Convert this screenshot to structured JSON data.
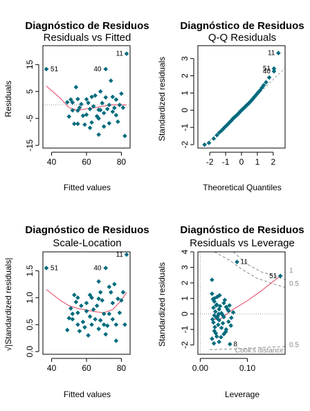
{
  "colors": {
    "point": "#006b7d",
    "smooth": "#e0405a",
    "ref": "#999999",
    "cook": "#888888"
  },
  "chart_data": [
    {
      "type": "scatter",
      "title": "Diagnóstico de Residuos",
      "subtitle": "Residuals vs Fitted",
      "xlabel": "Fitted values",
      "ylabel": "Residuals",
      "xlim": [
        35,
        85
      ],
      "ylim": [
        -16,
        22
      ],
      "xticks": [
        40,
        60,
        80
      ],
      "yticks": [
        -15,
        -5,
        5,
        15
      ],
      "reference_line": 0,
      "point_labels": [
        {
          "text": "51",
          "x": 37.0,
          "y": 13.3
        },
        {
          "text": "40",
          "x": 70.5,
          "y": 13.3
        },
        {
          "text": "11",
          "x": 83.0,
          "y": 19.0
        }
      ],
      "points": [
        [
          37,
          13.3
        ],
        [
          49,
          1
        ],
        [
          50,
          -4.3
        ],
        [
          51,
          2
        ],
        [
          52,
          0.9
        ],
        [
          52,
          -2
        ],
        [
          53,
          -7
        ],
        [
          54,
          6.6
        ],
        [
          55,
          2.2
        ],
        [
          55,
          -2.1
        ],
        [
          56,
          -1
        ],
        [
          57,
          0.3
        ],
        [
          58,
          -4
        ],
        [
          59,
          -7.3
        ],
        [
          60,
          2.1
        ],
        [
          60,
          -3.6
        ],
        [
          61,
          0.8
        ],
        [
          62,
          -1.5
        ],
        [
          63,
          3
        ],
        [
          63,
          -6.5
        ],
        [
          64,
          -0.5
        ],
        [
          65,
          3.5
        ],
        [
          66,
          -4.2
        ],
        [
          67,
          -1.8
        ],
        [
          67,
          -11
        ],
        [
          68,
          5
        ],
        [
          68,
          -1.9
        ],
        [
          69,
          0.7
        ],
        [
          70,
          -3
        ],
        [
          70,
          -8
        ],
        [
          71,
          13.3
        ],
        [
          71,
          2.8
        ],
        [
          72,
          -1.5
        ],
        [
          73,
          0
        ],
        [
          73,
          -6.8
        ],
        [
          74,
          9
        ],
        [
          75,
          -2.5
        ],
        [
          75,
          3
        ],
        [
          76,
          -1.1
        ],
        [
          77,
          2
        ],
        [
          77,
          -3.8
        ],
        [
          78,
          -6.2
        ],
        [
          79,
          0
        ],
        [
          80,
          4.2
        ],
        [
          81,
          -1
        ],
        [
          82,
          -11.5
        ],
        [
          83,
          19
        ],
        [
          55,
          -7
        ],
        [
          62,
          -8.5
        ],
        [
          67,
          -5
        ]
      ],
      "smooth_line": [
        [
          37,
          7
        ],
        [
          45,
          2.5
        ],
        [
          50,
          -1
        ],
        [
          55,
          -2
        ],
        [
          60,
          -1.4
        ],
        [
          65,
          -1
        ],
        [
          70,
          -0.4
        ],
        [
          75,
          0
        ],
        [
          80,
          0
        ],
        [
          83,
          0
        ]
      ]
    },
    {
      "type": "scatter",
      "title": "Diagnóstico de Residuos",
      "subtitle": "Q-Q Residuals",
      "xlabel": "Theoretical Quantiles",
      "ylabel": "Standardized residuals",
      "xlim": [
        -2.75,
        2.75
      ],
      "ylim": [
        -2.2,
        3.75
      ],
      "xticks": [
        -2,
        -1,
        0,
        1,
        2
      ],
      "yticks": [
        -2,
        -1,
        0,
        1,
        2,
        3
      ],
      "reference_line_points": [
        [
          -2.75,
          -2.45
        ],
        [
          2.75,
          2.45
        ]
      ],
      "point_labels": [
        {
          "text": "11",
          "x": 2.33,
          "y": 3.32
        },
        {
          "text": "51",
          "x": 2.05,
          "y": 2.42
        },
        {
          "text": "40",
          "x": 2.05,
          "y": 2.26
        }
      ],
      "points": [
        [
          -2.33,
          -2
        ],
        [
          -2.05,
          -1.9
        ],
        [
          -1.75,
          -1.65
        ],
        [
          -1.55,
          -1.45
        ],
        [
          -1.4,
          -1.3
        ],
        [
          -1.28,
          -1.2
        ],
        [
          -1.17,
          -1.1
        ],
        [
          -1.07,
          -1
        ],
        [
          -0.98,
          -0.92
        ],
        [
          -0.9,
          -0.85
        ],
        [
          -0.82,
          -0.78
        ],
        [
          -0.75,
          -0.7
        ],
        [
          -0.68,
          -0.64
        ],
        [
          -0.61,
          -0.57
        ],
        [
          -0.55,
          -0.5
        ],
        [
          -0.49,
          -0.45
        ],
        [
          -0.43,
          -0.4
        ],
        [
          -0.37,
          -0.35
        ],
        [
          -0.31,
          -0.3
        ],
        [
          -0.25,
          -0.25
        ],
        [
          -0.2,
          -0.2
        ],
        [
          -0.15,
          -0.15
        ],
        [
          -0.1,
          -0.1
        ],
        [
          -0.05,
          -0.05
        ],
        [
          0,
          0
        ],
        [
          0.05,
          0.04
        ],
        [
          0.1,
          0.08
        ],
        [
          0.15,
          0.12
        ],
        [
          0.2,
          0.17
        ],
        [
          0.25,
          0.22
        ],
        [
          0.31,
          0.27
        ],
        [
          0.37,
          0.32
        ],
        [
          0.43,
          0.38
        ],
        [
          0.49,
          0.43
        ],
        [
          0.55,
          0.49
        ],
        [
          0.61,
          0.55
        ],
        [
          0.68,
          0.62
        ],
        [
          0.75,
          0.7
        ],
        [
          0.82,
          0.78
        ],
        [
          0.9,
          0.86
        ],
        [
          0.98,
          0.95
        ],
        [
          1.07,
          1.05
        ],
        [
          1.17,
          1.15
        ],
        [
          1.28,
          1.3
        ],
        [
          1.4,
          1.45
        ],
        [
          1.55,
          1.62
        ],
        [
          1.75,
          1.9
        ],
        [
          2.05,
          2.26
        ],
        [
          2.05,
          2.42
        ],
        [
          2.33,
          3.32
        ]
      ]
    },
    {
      "type": "scatter",
      "title": "Diagnóstico de Residuos",
      "subtitle": "Scale-Location",
      "xlabel": "Fitted values",
      "ylabel": "√|Standardized residuals|",
      "xlim": [
        35,
        85
      ],
      "ylim": [
        -0.05,
        1.85
      ],
      "xticks": [
        40,
        60,
        80
      ],
      "yticks": [
        0.0,
        0.5,
        1.0,
        1.5
      ],
      "point_labels": [
        {
          "text": "51",
          "x": 37.0,
          "y": 1.55
        },
        {
          "text": "40",
          "x": 70.5,
          "y": 1.55
        },
        {
          "text": "11",
          "x": 83.0,
          "y": 1.8
        }
      ],
      "points": [
        [
          37,
          1.55
        ],
        [
          49,
          0.4
        ],
        [
          50,
          0.62
        ],
        [
          51,
          0.8
        ],
        [
          52,
          0.6
        ],
        [
          52,
          0.7
        ],
        [
          53,
          1.05
        ],
        [
          54,
          0.92
        ],
        [
          55,
          0.5
        ],
        [
          55,
          0.72
        ],
        [
          56,
          0.38
        ],
        [
          57,
          0.85
        ],
        [
          58,
          0.55
        ],
        [
          59,
          0.45
        ],
        [
          60,
          0.9
        ],
        [
          60,
          0.75
        ],
        [
          61,
          0.3
        ],
        [
          62,
          0.65
        ],
        [
          63,
          1.0
        ],
        [
          63,
          0.5
        ],
        [
          64,
          0.78
        ],
        [
          65,
          0.6
        ],
        [
          66,
          0.85
        ],
        [
          67,
          0.42
        ],
        [
          67,
          1.3
        ],
        [
          68,
          1.1
        ],
        [
          68,
          0.58
        ],
        [
          69,
          0.95
        ],
        [
          70,
          0.5
        ],
        [
          70,
          0.7
        ],
        [
          71,
          1.55
        ],
        [
          71,
          0.32
        ],
        [
          72,
          0.48
        ],
        [
          73,
          0.7
        ],
        [
          73,
          1.2
        ],
        [
          74,
          1.1
        ],
        [
          75,
          0.9
        ],
        [
          75,
          0.6
        ],
        [
          76,
          1.25
        ],
        [
          77,
          0.2
        ],
        [
          77,
          0.5
        ],
        [
          78,
          0.98
        ],
        [
          79,
          0.72
        ],
        [
          80,
          0.95
        ],
        [
          81,
          1.1
        ],
        [
          82,
          0.5
        ],
        [
          83,
          1.8
        ],
        [
          55,
          1.0
        ],
        [
          62,
          1.05
        ],
        [
          67,
          0.98
        ]
      ],
      "smooth_line": [
        [
          37,
          1.15
        ],
        [
          45,
          0.95
        ],
        [
          50,
          0.85
        ],
        [
          55,
          0.8
        ],
        [
          60,
          0.77
        ],
        [
          65,
          0.74
        ],
        [
          70,
          0.72
        ],
        [
          75,
          0.78
        ],
        [
          80,
          0.95
        ],
        [
          83,
          1.1
        ]
      ]
    },
    {
      "type": "scatter",
      "title": "Diagnóstico de Residuos",
      "subtitle": "Residuals vs Leverage",
      "xlabel": "Leverage",
      "ylabel": "Standardized residuals",
      "xlim": [
        -0.005,
        0.18
      ],
      "ylim": [
        -2.6,
        4
      ],
      "xticks": [
        0.0,
        0.1
      ],
      "yticks": [
        -2,
        -1,
        0,
        1,
        2,
        3,
        4
      ],
      "reference_line": 0,
      "cooks_distance_label": "Cook's distance",
      "cooks_contours": [
        {
          "label": "1",
          "side": "upper",
          "points": [
            [
              0.07,
              4.0
            ],
            [
              0.1,
              3.2
            ],
            [
              0.13,
              2.7
            ],
            [
              0.16,
              2.45
            ],
            [
              0.18,
              2.2
            ]
          ]
        },
        {
          "label": "0.5",
          "side": "upper",
          "points": [
            [
              0.03,
              4.0
            ],
            [
              0.06,
              3.5
            ],
            [
              0.09,
              2.85
            ],
            [
              0.12,
              2.3
            ],
            [
              0.15,
              2.0
            ],
            [
              0.18,
              1.7
            ]
          ]
        },
        {
          "label": "0.5",
          "side": "lower",
          "points": [
            [
              0.02,
              -2.3
            ],
            [
              0.08,
              -2.25
            ],
            [
              0.14,
              -2.15
            ],
            [
              0.18,
              -2.1
            ]
          ]
        }
      ],
      "contour_labels": [
        {
          "text": "1",
          "y": 2.8
        },
        {
          "text": "0.5",
          "y": 1.95
        },
        {
          "text": "0.5",
          "y": -2.0
        }
      ],
      "point_labels": [
        {
          "text": "11",
          "x": 0.078,
          "y": 3.35
        },
        {
          "text": "51",
          "x": 0.17,
          "y": 2.45
        },
        {
          "text": "8",
          "x": 0.063,
          "y": -1.95
        }
      ],
      "points": [
        [
          0.078,
          3.35
        ],
        [
          0.17,
          2.45
        ],
        [
          0.063,
          -1.95
        ],
        [
          0.025,
          2.2
        ],
        [
          0.025,
          1.3
        ],
        [
          0.03,
          1.0
        ],
        [
          0.03,
          0.8
        ],
        [
          0.035,
          0.6
        ],
        [
          0.028,
          0.4
        ],
        [
          0.04,
          0.3
        ],
        [
          0.032,
          0.15
        ],
        [
          0.045,
          0.05
        ],
        [
          0.03,
          -0.1
        ],
        [
          0.035,
          -0.25
        ],
        [
          0.04,
          -0.4
        ],
        [
          0.028,
          -0.55
        ],
        [
          0.038,
          -0.7
        ],
        [
          0.045,
          -0.9
        ],
        [
          0.03,
          -1.1
        ],
        [
          0.05,
          -1.3
        ],
        [
          0.035,
          -1.45
        ],
        [
          0.025,
          -1.6
        ],
        [
          0.04,
          -1.8
        ],
        [
          0.05,
          0.7
        ],
        [
          0.055,
          0.45
        ],
        [
          0.06,
          0.2
        ],
        [
          0.05,
          -0.2
        ],
        [
          0.06,
          -0.5
        ],
        [
          0.065,
          -0.75
        ],
        [
          0.055,
          -1.0
        ],
        [
          0.07,
          0.1
        ],
        [
          0.026,
          -0.35
        ],
        [
          0.027,
          0.95
        ],
        [
          0.033,
          -1.25
        ],
        [
          0.042,
          0.5
        ],
        [
          0.048,
          -0.6
        ],
        [
          0.036,
          1.1
        ],
        [
          0.044,
          -1.5
        ],
        [
          0.052,
          0.9
        ],
        [
          0.031,
          -0.85
        ],
        [
          0.039,
          0.0
        ],
        [
          0.047,
          -0.05
        ],
        [
          0.058,
          0.3
        ],
        [
          0.029,
          -1.9
        ],
        [
          0.034,
          0.55
        ],
        [
          0.041,
          1.2
        ],
        [
          0.037,
          -0.15
        ],
        [
          0.054,
          -1.15
        ],
        [
          0.062,
          0.55
        ],
        [
          0.066,
          -0.25
        ]
      ],
      "smooth_line": [
        [
          0.025,
          -0.3
        ],
        [
          0.04,
          -0.4
        ],
        [
          0.05,
          -0.15
        ],
        [
          0.07,
          0.3
        ],
        [
          0.1,
          0.85
        ],
        [
          0.13,
          1.5
        ],
        [
          0.17,
          2.45
        ]
      ]
    }
  ]
}
